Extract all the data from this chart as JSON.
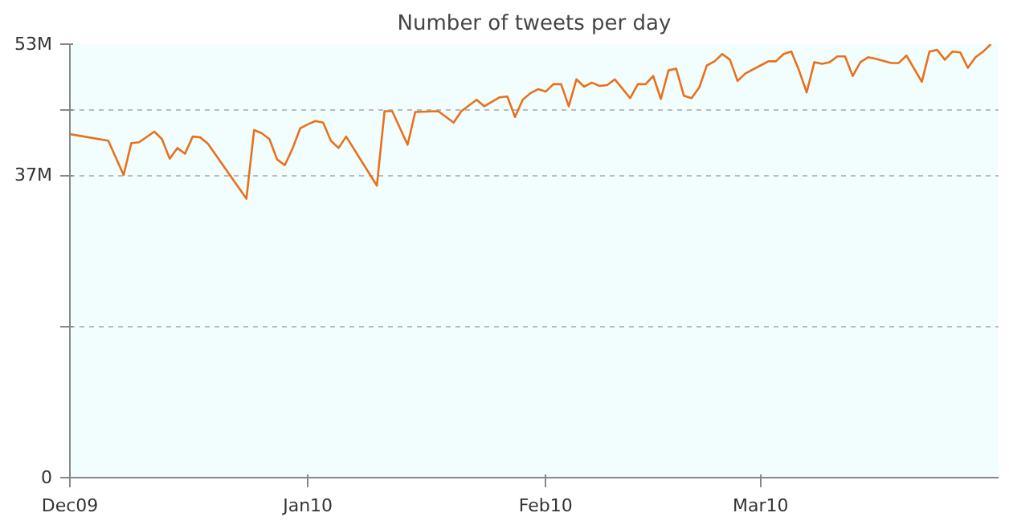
{
  "chart_data": {
    "type": "line",
    "title": "Number of tweets per day",
    "x": [
      "2009-12-01",
      "2009-12-06",
      "2009-12-08",
      "2009-12-09",
      "2009-12-10",
      "2009-12-12",
      "2009-12-13",
      "2009-12-14",
      "2009-12-15",
      "2009-12-16",
      "2009-12-17",
      "2009-12-18",
      "2009-12-19",
      "2009-12-24",
      "2009-12-25",
      "2009-12-26",
      "2009-12-27",
      "2009-12-28",
      "2009-12-29",
      "2009-12-30",
      "2009-12-31",
      "2010-01-01",
      "2010-01-02",
      "2010-01-03",
      "2010-01-04",
      "2010-01-05",
      "2010-01-06",
      "2010-01-10",
      "2010-01-11",
      "2010-01-12",
      "2010-01-14",
      "2010-01-15",
      "2010-01-18",
      "2010-01-20",
      "2010-01-21",
      "2010-01-23",
      "2010-01-24",
      "2010-01-26",
      "2010-01-27",
      "2010-01-28",
      "2010-01-29",
      "2010-01-30",
      "2010-01-31",
      "2010-02-01",
      "2010-02-02",
      "2010-02-03",
      "2010-02-04",
      "2010-02-05",
      "2010-02-06",
      "2010-02-07",
      "2010-02-08",
      "2010-02-09",
      "2010-02-10",
      "2010-02-12",
      "2010-02-13",
      "2010-02-14",
      "2010-02-15",
      "2010-02-16",
      "2010-02-17",
      "2010-02-18",
      "2010-02-19",
      "2010-02-20",
      "2010-02-21",
      "2010-02-22",
      "2010-02-23",
      "2010-02-24",
      "2010-02-25",
      "2010-02-26",
      "2010-02-27",
      "2010-03-01",
      "2010-03-02",
      "2010-03-03",
      "2010-03-04",
      "2010-03-05",
      "2010-03-06",
      "2010-03-07",
      "2010-03-08",
      "2010-03-09",
      "2010-03-10",
      "2010-03-11",
      "2010-03-12",
      "2010-03-13",
      "2010-03-14",
      "2010-03-15",
      "2010-03-16",
      "2010-03-18",
      "2010-03-19",
      "2010-03-20",
      "2010-03-22",
      "2010-03-23",
      "2010-03-24",
      "2010-03-25",
      "2010-03-26",
      "2010-03-27",
      "2010-03-28",
      "2010-03-29",
      "2010-03-30",
      "2010-03-31"
    ],
    "series": [
      {
        "color": "#e8711c",
        "values": [
          42.0,
          41.2,
          37.0,
          40.9,
          41.0,
          42.3,
          41.4,
          39.0,
          40.3,
          39.6,
          41.7,
          41.6,
          40.8,
          34.1,
          42.5,
          42.1,
          41.4,
          38.9,
          38.2,
          40.2,
          42.7,
          43.2,
          43.6,
          43.4,
          41.2,
          40.3,
          41.7,
          35.7,
          44.8,
          44.8,
          40.7,
          44.7,
          44.8,
          43.4,
          44.8,
          46.2,
          45.4,
          46.5,
          46.6,
          44.1,
          46.2,
          47.0,
          47.5,
          47.2,
          48.1,
          48.1,
          45.4,
          48.7,
          47.8,
          48.3,
          47.9,
          48.0,
          48.7,
          46.4,
          48.1,
          48.1,
          49.1,
          46.3,
          49.8,
          50.0,
          46.7,
          46.4,
          47.7,
          50.4,
          50.9,
          51.8,
          51.1,
          48.5,
          49.4,
          50.4,
          50.9,
          50.9,
          51.8,
          52.1,
          49.8,
          47.1,
          50.8,
          50.6,
          50.8,
          51.5,
          51.5,
          49.1,
          50.8,
          51.4,
          51.2,
          50.7,
          50.7,
          51.6,
          48.4,
          52.1,
          52.3,
          51.1,
          52.1,
          52.0,
          50.1,
          51.4,
          52.1,
          53.0
        ]
      }
    ],
    "xlim": [
      "2009-12-01",
      "2010-04-01"
    ],
    "xticks": [
      {
        "value": "2009-12-01",
        "label": "Dec09"
      },
      {
        "value": "2010-01-01",
        "label": "Jan10"
      },
      {
        "value": "2010-02-01",
        "label": "Feb10"
      },
      {
        "value": "2010-03-01",
        "label": "Mar10"
      }
    ],
    "ylim": [
      0,
      53
    ],
    "yticks": [
      0,
      {
        "value": 18.5,
        "label": null
      },
      {
        "value": 37,
        "label": "37M"
      },
      {
        "value": 45,
        "label": null
      },
      {
        "value": 53,
        "label": "53M"
      }
    ],
    "grid": "y",
    "marker": "none",
    "line_style": "solid"
  }
}
